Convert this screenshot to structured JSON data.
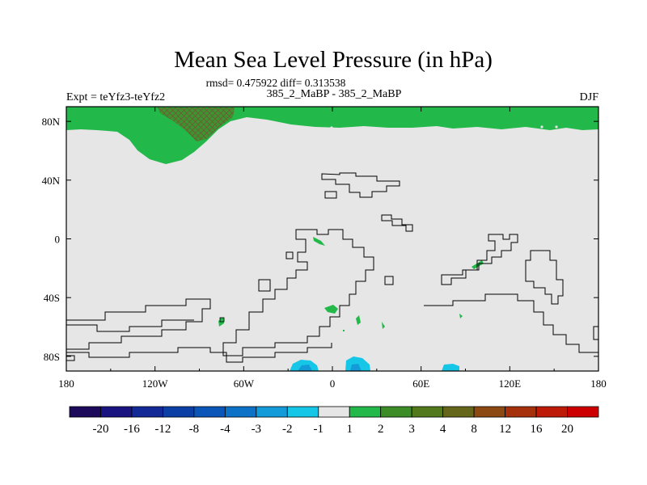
{
  "chart_data": {
    "type": "heatmap",
    "title": "Mean Sea Level Pressure (in hPa)",
    "stats_text": "rmsd= 0.475922 diff= 0.313538",
    "case_text": "385_2_MaBP - 385_2_MaBP",
    "expt_text": "Expt = teYfz3-teYfz2",
    "season": "DJF",
    "x_tick_labels": [
      "180",
      "120W",
      "60W",
      "0",
      "60E",
      "120E",
      "180"
    ],
    "x_tick_values": [
      -180,
      -120,
      -60,
      0,
      60,
      120,
      180
    ],
    "y_tick_labels": [
      "80N",
      "40N",
      "0",
      "40S",
      "80S"
    ],
    "y_tick_values": [
      80,
      40,
      0,
      -40,
      -80
    ],
    "xlim": [
      -180,
      180
    ],
    "ylim": [
      -90,
      90
    ],
    "colorbar": {
      "labels": [
        "-20",
        "-16",
        "-12",
        "-8",
        "-4",
        "-3",
        "-2",
        "-1",
        "1",
        "2",
        "3",
        "4",
        "8",
        "12",
        "16",
        "20"
      ],
      "colors": [
        "#1e0a5a",
        "#1a1480",
        "#132a96",
        "#0c3fa6",
        "#0a55b8",
        "#0c72c8",
        "#139ad8",
        "#16c6e6",
        "#e6e6e6",
        "#22b84a",
        "#3c8c28",
        "#527a1c",
        "#66661a",
        "#8c4a12",
        "#a6300c",
        "#bd1a08",
        "#cc0000"
      ]
    },
    "fields": [
      {
        "region": "north polar cap (~75N-90N, all longitudes)",
        "category": "1 to 2",
        "color": "#22b84a"
      },
      {
        "region": "bulge over Pacific/North America, 150W-80W, to ~50N",
        "category": "1 to 2",
        "color": "#22b84a"
      },
      {
        "region": "small region near 120W-90W, ~80N",
        "category": "3 to 4",
        "color": "#527a1c"
      },
      {
        "region": "Antarctic coast near 20W",
        "category": "-2 to -1",
        "color": "#16c6e6"
      },
      {
        "region": "Antarctic coast near 15E",
        "category": "-2 to -1",
        "color": "#16c6e6"
      },
      {
        "region": "Antarctic coast near 80E",
        "category": "-2 to -1",
        "color": "#16c6e6"
      },
      {
        "region": "scattered spots in tropics and Southern Ocean",
        "category": "1 to 2",
        "color": "#22b84a"
      }
    ]
  }
}
